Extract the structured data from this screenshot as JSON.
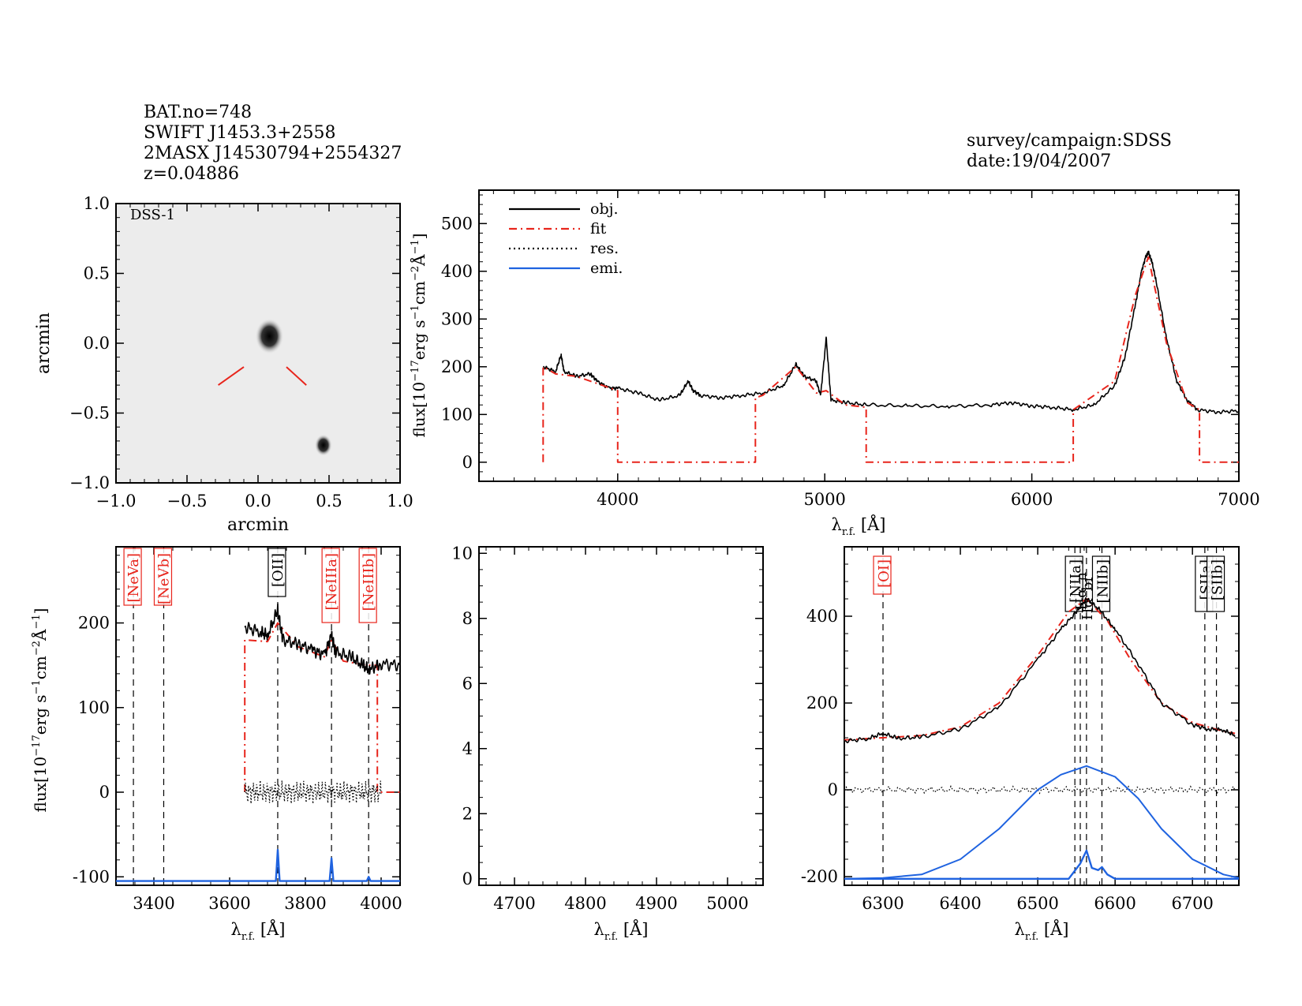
{
  "header": {
    "bat_no": "BAT.no=748",
    "swift_name": "SWIFT J1453.3+2558",
    "counterpart": "2MASX J14530794+2554327",
    "redshift": "z=0.04886",
    "survey": "survey/campaign:SDSS",
    "date": "date:19/04/2007"
  },
  "colors": {
    "object": "#000000",
    "fit": "#e8251c",
    "emission": "#1f63e0",
    "image_background": "#ececec"
  },
  "chart_data": [
    {
      "type": "image",
      "panel": "dss-image",
      "label": "DSS-1",
      "xlabel": "arcmin",
      "ylabel": "arcmin",
      "xlim": [
        -1.0,
        1.0
      ],
      "ylim": [
        -1.0,
        1.0
      ],
      "xticks": [
        "−1.0",
        "−0.5",
        "0.0",
        "0.5",
        "1.0"
      ],
      "yticks": [
        "−1.0",
        "−0.5",
        "0.0",
        "0.5",
        "1.0"
      ],
      "sources": [
        {
          "x": 0.08,
          "y": 0.05,
          "brightness": "bright"
        },
        {
          "x": 0.46,
          "y": -0.73,
          "brightness": "faint"
        }
      ],
      "marker_lines": [
        {
          "x": [
            -0.28,
            -0.1
          ],
          "y": [
            -0.3,
            -0.17
          ]
        },
        {
          "x": [
            0.2,
            0.34
          ],
          "y": [
            -0.17,
            -0.3
          ]
        }
      ]
    },
    {
      "type": "line",
      "panel": "full-spectrum",
      "xlabel": "λ_r.f. [Å]",
      "ylabel": "flux[10⁻¹⁷erg s⁻¹cm⁻²Å⁻¹]",
      "xlim": [
        3330,
        7000
      ],
      "ylim": [
        -40,
        570
      ],
      "xticks": [
        4000,
        5000,
        6000,
        7000
      ],
      "yticks": [
        0,
        100,
        200,
        300,
        400,
        500
      ],
      "legend": [
        "obj.",
        "fit",
        "res.",
        "emi."
      ],
      "legend_position": "top-left",
      "series": [
        {
          "name": "obj.",
          "style": "solid",
          "x": [
            3640,
            3700,
            3727,
            3740,
            3800,
            3869,
            3900,
            3960,
            4000,
            4100,
            4200,
            4300,
            4340,
            4365,
            4400,
            4500,
            4600,
            4700,
            4800,
            4861,
            4900,
            4959,
            4980,
            5007,
            5030,
            5100,
            5200,
            5400,
            5600,
            5800,
            5900,
            6000,
            6100,
            6200,
            6300,
            6400,
            6450,
            6500,
            6530,
            6550,
            6563,
            6580,
            6600,
            6650,
            6700,
            6750,
            6800,
            6900,
            7000
          ],
          "y": [
            200,
            190,
            225,
            190,
            180,
            185,
            170,
            155,
            155,
            145,
            130,
            140,
            170,
            150,
            140,
            135,
            140,
            145,
            160,
            205,
            180,
            170,
            140,
            260,
            130,
            125,
            120,
            118,
            117,
            120,
            125,
            118,
            115,
            110,
            120,
            160,
            220,
            330,
            400,
            430,
            440,
            420,
            380,
            260,
            170,
            130,
            110,
            105,
            108
          ]
        },
        {
          "name": "fit",
          "style": "dash-dot",
          "x": [
            3640,
            3640,
            3700,
            3800,
            3900,
            4000,
            4000,
            4000,
            4665,
            4665,
            4700,
            4861,
            4960,
            5007,
            5100,
            5200,
            5200,
            5200,
            6200,
            6200,
            6200,
            6400,
            6500,
            6563,
            6650,
            6750,
            6810,
            6810,
            7000
          ],
          "y": [
            0,
            200,
            185,
            180,
            165,
            150,
            150,
            0,
            0,
            135,
            140,
            200,
            145,
            150,
            120,
            115,
            115,
            0,
            0,
            110,
            110,
            170,
            350,
            430,
            250,
            125,
            110,
            0,
            0
          ]
        }
      ]
    },
    {
      "type": "line",
      "panel": "zoom-oii-neiii",
      "xlabel": "λ_r.f. [Å]",
      "ylabel": "flux[10⁻¹⁷erg s⁻¹cm⁻²Å⁻¹]",
      "xlim": [
        3300,
        4050
      ],
      "ylim": [
        -110,
        290
      ],
      "xticks": [
        3400,
        3600,
        3800,
        4000
      ],
      "yticks": [
        -100,
        0,
        100,
        200
      ],
      "lines": [
        {
          "label": "[NeVa]",
          "x": 3346,
          "color": "red"
        },
        {
          "label": "[NeVb]",
          "x": 3426,
          "color": "red"
        },
        {
          "label": "[OII]",
          "x": 3727,
          "color": "black"
        },
        {
          "label": "[NeIIIa]",
          "x": 3869,
          "color": "red"
        },
        {
          "label": "[NeIIIb]",
          "x": 3967,
          "color": "red"
        }
      ],
      "series": [
        {
          "name": "obj.",
          "x": [
            3640,
            3680,
            3700,
            3727,
            3740,
            3780,
            3820,
            3850,
            3869,
            3880,
            3920,
            3950,
            3970,
            4000,
            4050
          ],
          "y": [
            195,
            190,
            185,
            215,
            180,
            175,
            168,
            162,
            185,
            165,
            160,
            150,
            145,
            152,
            150
          ]
        },
        {
          "name": "fit",
          "x": [
            3640,
            3640,
            3700,
            3727,
            3780,
            3850,
            3869,
            3900,
            3960,
            3990,
            3990,
            4050
          ],
          "y": [
            0,
            180,
            178,
            200,
            172,
            160,
            180,
            155,
            150,
            150,
            0,
            0
          ]
        },
        {
          "name": "res.",
          "x": [
            3640,
            4000
          ],
          "y": [
            0,
            0
          ]
        },
        {
          "name": "emi.",
          "x": [
            3300,
            3722,
            3727,
            3732,
            3864,
            3869,
            3874,
            3962,
            3967,
            3972,
            4050
          ],
          "y": [
            -105,
            -105,
            -68,
            -105,
            -105,
            -78,
            -105,
            -105,
            -100,
            -105,
            -105
          ]
        }
      ]
    },
    {
      "type": "line",
      "panel": "zoom-hbeta",
      "xlabel": "λ_r.f. [Å]",
      "xlim": [
        4650,
        5050
      ],
      "ylim": [
        -0.2,
        10.2
      ],
      "xticks": [
        4700,
        4800,
        4900,
        5000
      ],
      "yticks": [
        0,
        2,
        4,
        6,
        8,
        10
      ],
      "series": []
    },
    {
      "type": "line",
      "panel": "zoom-halpha",
      "xlabel": "λ_r.f. [Å]",
      "xlim": [
        6250,
        6760
      ],
      "ylim": [
        -220,
        560
      ],
      "xticks": [
        6300,
        6400,
        6500,
        6600,
        6700
      ],
      "yticks": [
        -200,
        0,
        200,
        400
      ],
      "lines": [
        {
          "label": "[OI]",
          "x": 6300,
          "color": "red"
        },
        {
          "label": "[NIIa]",
          "x": 6548,
          "color": "black"
        },
        {
          "label": "Hα_n",
          "x": 6555,
          "color": "black"
        },
        {
          "label": "Hα_br",
          "x": 6563,
          "color": "black"
        },
        {
          "label": "[NIIb]",
          "x": 6583,
          "color": "black"
        },
        {
          "label": "[SIIa]",
          "x": 6716,
          "color": "black"
        },
        {
          "label": "[SIIb]",
          "x": 6731,
          "color": "black"
        }
      ],
      "series": [
        {
          "name": "obj.",
          "x": [
            6250,
            6280,
            6300,
            6320,
            6350,
            6400,
            6450,
            6500,
            6530,
            6550,
            6563,
            6580,
            6600,
            6630,
            6660,
            6700,
            6720,
            6740,
            6755
          ],
          "y": [
            112,
            118,
            130,
            118,
            122,
            140,
            190,
            300,
            370,
            410,
            440,
            415,
            370,
            290,
            200,
            150,
            140,
            138,
            125
          ]
        },
        {
          "name": "fit",
          "x": [
            6250,
            6300,
            6350,
            6400,
            6450,
            6500,
            6540,
            6563,
            6590,
            6620,
            6660,
            6700,
            6740,
            6755
          ],
          "y": [
            115,
            120,
            125,
            145,
            200,
            310,
            410,
            440,
            390,
            300,
            200,
            155,
            135,
            130
          ]
        },
        {
          "name": "res.",
          "x": [
            6250,
            6755
          ],
          "y": [
            0,
            0
          ]
        },
        {
          "name": "emi. broad",
          "x": [
            6250,
            6300,
            6350,
            6400,
            6450,
            6500,
            6530,
            6563,
            6600,
            6630,
            6660,
            6700,
            6740,
            6760
          ],
          "y": [
            -205,
            -203,
            -195,
            -160,
            -90,
            0,
            35,
            55,
            30,
            -20,
            -90,
            -160,
            -195,
            -203
          ]
        },
        {
          "name": "emi. narrow",
          "x": [
            6250,
            6540,
            6555,
            6563,
            6570,
            6578,
            6583,
            6590,
            6600,
            6760
          ],
          "y": [
            -205,
            -205,
            -170,
            -140,
            -180,
            -185,
            -178,
            -195,
            -205,
            -205
          ]
        }
      ]
    }
  ]
}
